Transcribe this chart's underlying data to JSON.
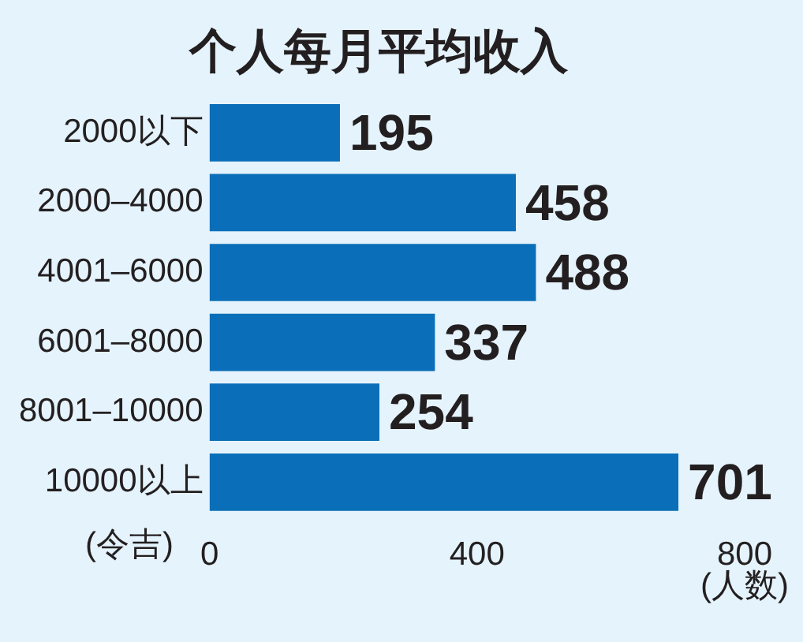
{
  "chart_data": {
    "type": "bar",
    "orientation": "horizontal",
    "title": "个人每月平均收入",
    "categories": [
      "2000以下",
      "2000–4000",
      "4001–6000",
      "6001–8000",
      "8001–10000",
      "10000以上"
    ],
    "values": [
      195,
      458,
      488,
      337,
      254,
      701
    ],
    "color": "#0a6fb8",
    "xlim": [
      0,
      800
    ],
    "xticks": [
      0,
      400,
      800
    ],
    "ylabel": "(令吉)",
    "xlabel": "(人数)",
    "data_labels": true,
    "grid": false,
    "legend": false
  }
}
